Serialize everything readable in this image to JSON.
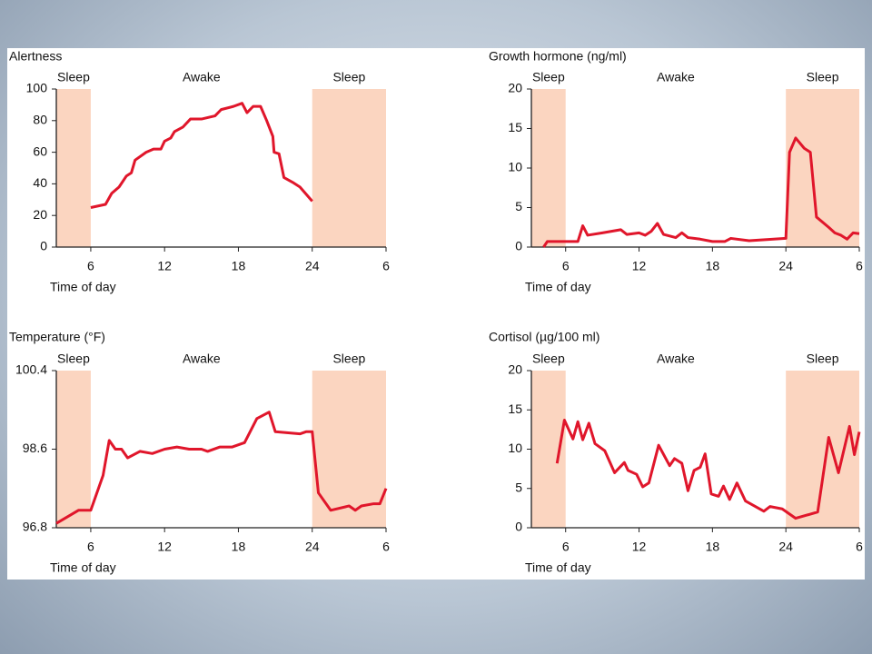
{
  "chart_data": [
    {
      "type": "line",
      "title": "Alertness",
      "x_label": "Time of day",
      "color": "#e0162b",
      "shade_color": "#fbd5c0",
      "periods": [
        {
          "label": "Sleep",
          "start": 3.2,
          "end": 6,
          "shaded": true
        },
        {
          "label": "Awake",
          "start": 6,
          "end": 24,
          "shaded": false
        },
        {
          "label": "Sleep",
          "start": 24,
          "end": 30,
          "shaded": true
        }
      ],
      "xlim": [
        3.2,
        30
      ],
      "xticks": [
        6,
        12,
        18,
        24,
        {
          "value": 30,
          "label": "6"
        }
      ],
      "ylim": [
        0,
        100
      ],
      "yticks": [
        0,
        20,
        40,
        60,
        80,
        100
      ],
      "x": [
        6,
        7.2,
        7.7,
        8.3,
        8.9,
        9.3,
        9.6,
        10.5,
        11.1,
        11.7,
        12,
        12.5,
        12.8,
        13.5,
        14.1,
        15,
        16.1,
        16.6,
        17.6,
        18.3,
        18.7,
        19.2,
        19.8,
        20.3,
        20.8,
        20.9,
        21.3,
        21.7,
        22.4,
        23,
        24
      ],
      "values": [
        25,
        27,
        34,
        38,
        45,
        47,
        55,
        60,
        62,
        62,
        67,
        69,
        73,
        76,
        81,
        81,
        83,
        87,
        89,
        91,
        85,
        89,
        89,
        80,
        70,
        60,
        59,
        44,
        41,
        38,
        29
      ]
    },
    {
      "type": "line",
      "title": "Growth hormone (ng/ml)",
      "x_label": "Time of day",
      "color": "#e0162b",
      "shade_color": "#fbd5c0",
      "periods": [
        {
          "label": "Sleep",
          "start": 3.2,
          "end": 6,
          "shaded": true
        },
        {
          "label": "Awake",
          "start": 6,
          "end": 24,
          "shaded": false
        },
        {
          "label": "Sleep",
          "start": 24,
          "end": 30,
          "shaded": true
        }
      ],
      "xlim": [
        3.2,
        30
      ],
      "xticks": [
        6,
        12,
        18,
        24,
        {
          "value": 30,
          "label": "6"
        }
      ],
      "ylim": [
        0,
        20
      ],
      "yticks": [
        0,
        5,
        10,
        15,
        20
      ],
      "x": [
        4.2,
        4.5,
        6,
        7,
        7.4,
        7.8,
        9,
        10.5,
        11,
        12,
        12.5,
        13,
        13.5,
        14,
        15,
        15.5,
        16,
        17,
        18,
        19,
        19.5,
        21,
        24,
        24.3,
        24.8,
        25.5,
        26,
        26.5,
        27.5,
        28,
        28.5,
        29,
        29.5,
        30
      ],
      "values": [
        0,
        0.7,
        0.7,
        0.7,
        2.7,
        1.5,
        1.8,
        2.2,
        1.6,
        1.8,
        1.5,
        2,
        3,
        1.6,
        1.2,
        1.8,
        1.2,
        1,
        0.7,
        0.7,
        1.1,
        0.8,
        1.1,
        12,
        13.8,
        12.5,
        12,
        3.8,
        2.5,
        1.8,
        1.5,
        1,
        1.8,
        1.7
      ]
    },
    {
      "type": "line",
      "title": "Temperature (°F)",
      "x_label": "Time of day",
      "color": "#e0162b",
      "shade_color": "#fbd5c0",
      "periods": [
        {
          "label": "Sleep",
          "start": 3.2,
          "end": 6,
          "shaded": true
        },
        {
          "label": "Awake",
          "start": 6,
          "end": 24,
          "shaded": false
        },
        {
          "label": "Sleep",
          "start": 24,
          "end": 30,
          "shaded": true
        }
      ],
      "xlim": [
        3.2,
        30
      ],
      "xticks": [
        6,
        12,
        18,
        24,
        {
          "value": 30,
          "label": "6"
        }
      ],
      "ylim": [
        96.8,
        100.4
      ],
      "yticks": [
        96.8,
        98.6,
        100.4
      ],
      "x": [
        3.2,
        5,
        6,
        7,
        7.5,
        8,
        8.5,
        9,
        10,
        11,
        12,
        13,
        14,
        15,
        15.5,
        16.5,
        17.5,
        18.5,
        19.5,
        20.5,
        21,
        23,
        23.5,
        24,
        24.5,
        25.5,
        27,
        27.5,
        28,
        29,
        29.5,
        30
      ],
      "values": [
        96.9,
        97.2,
        97.2,
        98.0,
        98.8,
        98.6,
        98.6,
        98.4,
        98.55,
        98.5,
        98.6,
        98.65,
        98.6,
        98.6,
        98.55,
        98.65,
        98.65,
        98.75,
        99.3,
        99.45,
        99.0,
        98.95,
        99.0,
        99.0,
        97.6,
        97.2,
        97.3,
        97.2,
        97.3,
        97.35,
        97.35,
        97.7
      ]
    },
    {
      "type": "line",
      "title": "Cortisol (µg/100 ml)",
      "x_label": "Time of day",
      "color": "#e0162b",
      "shade_color": "#fbd5c0",
      "periods": [
        {
          "label": "Sleep",
          "start": 3.2,
          "end": 6,
          "shaded": true
        },
        {
          "label": "Awake",
          "start": 6,
          "end": 24,
          "shaded": false
        },
        {
          "label": "Sleep",
          "start": 24,
          "end": 30,
          "shaded": true
        }
      ],
      "xlim": [
        3.2,
        30
      ],
      "xticks": [
        6,
        12,
        18,
        24,
        {
          "value": 30,
          "label": "6"
        }
      ],
      "ylim": [
        0,
        20
      ],
      "yticks": [
        0,
        5,
        10,
        15,
        20
      ],
      "x": [
        5.3,
        5.9,
        6.6,
        7.0,
        7.4,
        7.9,
        8.4,
        9.2,
        10,
        10.8,
        11.1,
        11.8,
        12.3,
        12.8,
        13.6,
        14.5,
        14.9,
        15.5,
        16,
        16.5,
        17,
        17.4,
        17.9,
        18.5,
        18.9,
        19.4,
        20,
        20.7,
        22.2,
        22.7,
        23.7,
        24.8,
        26.6,
        27.5,
        28.3,
        29.2,
        29.6,
        30
      ],
      "values": [
        8.2,
        13.7,
        11.3,
        13.5,
        11.2,
        13.3,
        10.7,
        9.8,
        7,
        8.3,
        7.3,
        6.8,
        5.2,
        5.7,
        10.5,
        7.9,
        8.8,
        8.2,
        4.7,
        7.3,
        7.7,
        9.4,
        4.3,
        4,
        5.3,
        3.6,
        5.7,
        3.4,
        2.1,
        2.7,
        2.4,
        1.2,
        2,
        11.5,
        7,
        12.9,
        9.3,
        12.2
      ]
    }
  ]
}
